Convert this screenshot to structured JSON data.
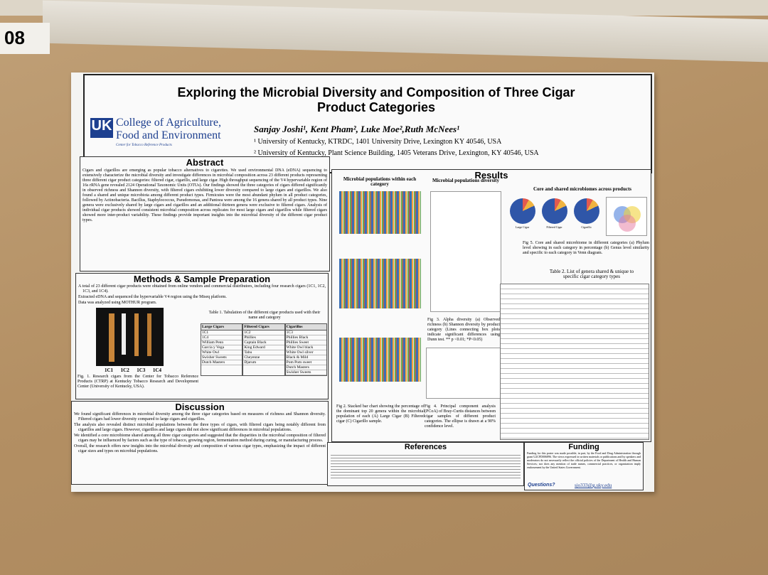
{
  "board_label": "08",
  "header": {
    "title": "Exploring the Microbial Diversity and Composition of Three Cigar Product Categories",
    "logo_line1": "College of Agriculture,",
    "logo_line2": "Food and Environment",
    "logo_sub": "Center for Tobacco Reference Products",
    "authors": "Sanjay Joshi¹, Kent Pham², Luke Moe²,Ruth McNees¹",
    "affiliation1": "¹ University of Kentucky, KTRDC, 1401 University Drive, Lexington KY 40546, USA",
    "affiliation2": "² University of Kentucky, Plant Science Building, 1405 Veterans Drive, Lexington, KY 40546, USA"
  },
  "abstract": {
    "heading": "Abstract",
    "text": "Cigars and cigarillos are emerging as popular tobacco alternatives to cigarettes. We used environmental DNA (eDNA) sequencing to extensively characterize the microbial diversity and investigate differences in microbial composition across 23 different products representing three different cigar product categories: filtered cigar, cigarillo, and large cigar. High throughput sequencing of the V4 hypervariable region of 16s rRNA gene revealed 2124 Operational Taxonomic Units (OTUs). Our findings showed the three categories of cigars differed significantly in observed richness and Shannon diversity, with filtered cigars exhibiting lower diversity compared to large cigars and cigarillos. We also found a shared and unique microbiota among different product types. Firmicutes were the most abundant phylum in all product categories, followed by Actinobacteria. Bacillus, Staphylococcus, Pseudomonas, and Pantoea were among the 16 genera shared by all product types. Nine genera were exclusively shared by large cigars and cigarillos and an additional thirteen genera were exclusive to filtered cigars. Analysis of individual cigar products showed consistent microbial composition across replicates for most large cigars and cigarillos while filtered cigars showed more inter-product variability. These findings provide important insights into the microbial diversity of the different cigar product types."
  },
  "methods": {
    "heading": "Methods & Sample Preparation",
    "bullets": [
      "A total of 23 different cigar products were obtained from online vendors and commercial distributors, including four research cigars (1C1, 1C2, 1C3, and 1C4).",
      "Extracted eDNA and sequenced the hypervariable V4 region using the Miseq platform.",
      "Data was analyzed using MOTHUR program."
    ],
    "fig1_labels": [
      "1C1",
      "1C2",
      "1C3",
      "1C4"
    ],
    "fig1_caption": "Fig. 1. Research cigars from the Center for Tobacco Reference Products (CTRP) at Kentucky Tobacco Research and Development Center (University of Kentucky, USA).",
    "table_caption": "Table 1. Tabulation of the different cigar products used with their name and category",
    "table": [
      {
        "name": "Large Cigars",
        "items": [
          "1C1",
          "1C4",
          "William Penn",
          "Garcia y Vega",
          "White Owl",
          "Swisher Sweets",
          "Dutch Masters"
        ]
      },
      {
        "name": "Filtered Cigars",
        "items": [
          "1C2",
          "Phillies",
          "Captain Black",
          "King Edward",
          "Tabu",
          "Cheyenne",
          "Djarum"
        ]
      },
      {
        "name": "Cigarillos",
        "items": [
          "1C3",
          "Phillies Black",
          "Phillies Sweet",
          "White Owl black",
          "White Owl silver",
          "Black & Mild",
          "Pom Pom sweet",
          "Dutch Masters",
          "Swisher Sweets"
        ]
      }
    ]
  },
  "discussion": {
    "heading": "Discussion",
    "bullets": [
      "We found significant differences in microbial diversity among the three cigar categories based on measures of richness and Shannon diversity. Filtered cigars had lower diversity compared to large cigars and cigarillos.",
      "The analysis also revealed distinct microbial populations between the three types of cigars, with filtered cigars being notably different from cigarillos and large cigars. However, cigarillos and large cigars did not show significant differences in microbial populations.",
      "We identified a core microbiome shared among all three cigar categories and suggested that the disparities in the microbial composition of filtered cigars may be influenced by factors such as the type of tobacco, growing region, fermentation method during curing, or manufacturing process.",
      "Overall, the research offers new insights into the microbial diversity and composition of various cigar types, emphasizing the impact of different cigar sizes and types on microbial populations."
    ]
  },
  "results": {
    "heading": "Results",
    "panel1": "Microbial populations within each category",
    "panel2": "Microbial populations diversity",
    "panel3": "Core and shared microbiomes across products",
    "pie_labels": [
      "Large Cigar",
      "Filtered Cigar",
      "Cigarillo"
    ],
    "fig2_caption": "Fig 2. Stacked bar chart showing the percentage of the dominant top 20 genera within the microbial population of each (A) Large Cigar (B) Filtered cigar (C) Cigarillo sample.",
    "fig3_caption": "Fig 3. Alpha diversity (a) Observed richness (b) Shannon diversity by product category (Lines connecting box plots indicate significant differences using Dunn test. ** p <0.01; *P<0.05)",
    "fig4_caption": "Fig 4. Principal component analysis (PCoA) of Bray-Curtis distances between cigar samples of different product categories. The ellipse is drawn at a 90% confidence level.",
    "fig5_caption": "Fig 5. Core and shared microbiome in different categories (a) Phylum level showing in each category in percentage (b) Genus level similarity and specific to each category in Venn diagram.",
    "table2_caption": "Table 2. List of genera shared & unique to specific cigar category types"
  },
  "references": {
    "heading": "References"
  },
  "funding": {
    "heading": "Funding",
    "text": "Funding for this poster was made possible, in part, by the Food and Drug Administration through grant U2CFD006896. The views expressed in written materials or publications and by speakers and moderators do not necessarily reflect the official policies of the Department of Health and Human Services; nor does any mention of trade names, commercial practices, or organization imply endorsement by the United States Government.",
    "questions": "Questions?",
    "email": "sjo333@g.uky.edu"
  }
}
